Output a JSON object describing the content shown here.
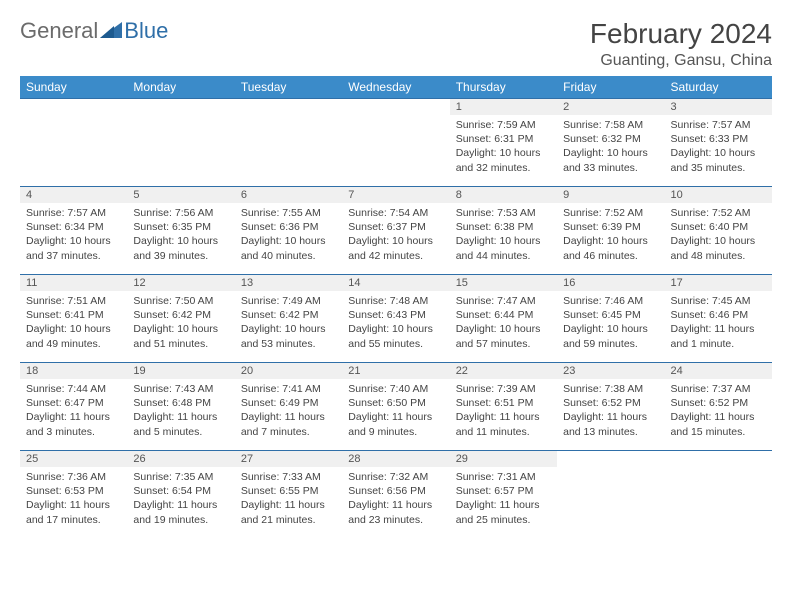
{
  "logo": {
    "general": "General",
    "blue": "Blue"
  },
  "title": "February 2024",
  "location": "Guanting, Gansu, China",
  "columns": [
    "Sunday",
    "Monday",
    "Tuesday",
    "Wednesday",
    "Thursday",
    "Friday",
    "Saturday"
  ],
  "colors": {
    "header_bg": "#3b8bc9",
    "header_text": "#ffffff",
    "border": "#2f6fa8",
    "daynum_bg": "#f0f0f0",
    "text": "#444444",
    "logo_gray": "#6b6b6b",
    "logo_blue": "#2f6fa8"
  },
  "weeks": [
    [
      null,
      null,
      null,
      null,
      {
        "n": "1",
        "sr": "Sunrise: 7:59 AM",
        "ss": "Sunset: 6:31 PM",
        "dl": "Daylight: 10 hours and 32 minutes."
      },
      {
        "n": "2",
        "sr": "Sunrise: 7:58 AM",
        "ss": "Sunset: 6:32 PM",
        "dl": "Daylight: 10 hours and 33 minutes."
      },
      {
        "n": "3",
        "sr": "Sunrise: 7:57 AM",
        "ss": "Sunset: 6:33 PM",
        "dl": "Daylight: 10 hours and 35 minutes."
      }
    ],
    [
      {
        "n": "4",
        "sr": "Sunrise: 7:57 AM",
        "ss": "Sunset: 6:34 PM",
        "dl": "Daylight: 10 hours and 37 minutes."
      },
      {
        "n": "5",
        "sr": "Sunrise: 7:56 AM",
        "ss": "Sunset: 6:35 PM",
        "dl": "Daylight: 10 hours and 39 minutes."
      },
      {
        "n": "6",
        "sr": "Sunrise: 7:55 AM",
        "ss": "Sunset: 6:36 PM",
        "dl": "Daylight: 10 hours and 40 minutes."
      },
      {
        "n": "7",
        "sr": "Sunrise: 7:54 AM",
        "ss": "Sunset: 6:37 PM",
        "dl": "Daylight: 10 hours and 42 minutes."
      },
      {
        "n": "8",
        "sr": "Sunrise: 7:53 AM",
        "ss": "Sunset: 6:38 PM",
        "dl": "Daylight: 10 hours and 44 minutes."
      },
      {
        "n": "9",
        "sr": "Sunrise: 7:52 AM",
        "ss": "Sunset: 6:39 PM",
        "dl": "Daylight: 10 hours and 46 minutes."
      },
      {
        "n": "10",
        "sr": "Sunrise: 7:52 AM",
        "ss": "Sunset: 6:40 PM",
        "dl": "Daylight: 10 hours and 48 minutes."
      }
    ],
    [
      {
        "n": "11",
        "sr": "Sunrise: 7:51 AM",
        "ss": "Sunset: 6:41 PM",
        "dl": "Daylight: 10 hours and 49 minutes."
      },
      {
        "n": "12",
        "sr": "Sunrise: 7:50 AM",
        "ss": "Sunset: 6:42 PM",
        "dl": "Daylight: 10 hours and 51 minutes."
      },
      {
        "n": "13",
        "sr": "Sunrise: 7:49 AM",
        "ss": "Sunset: 6:42 PM",
        "dl": "Daylight: 10 hours and 53 minutes."
      },
      {
        "n": "14",
        "sr": "Sunrise: 7:48 AM",
        "ss": "Sunset: 6:43 PM",
        "dl": "Daylight: 10 hours and 55 minutes."
      },
      {
        "n": "15",
        "sr": "Sunrise: 7:47 AM",
        "ss": "Sunset: 6:44 PM",
        "dl": "Daylight: 10 hours and 57 minutes."
      },
      {
        "n": "16",
        "sr": "Sunrise: 7:46 AM",
        "ss": "Sunset: 6:45 PM",
        "dl": "Daylight: 10 hours and 59 minutes."
      },
      {
        "n": "17",
        "sr": "Sunrise: 7:45 AM",
        "ss": "Sunset: 6:46 PM",
        "dl": "Daylight: 11 hours and 1 minute."
      }
    ],
    [
      {
        "n": "18",
        "sr": "Sunrise: 7:44 AM",
        "ss": "Sunset: 6:47 PM",
        "dl": "Daylight: 11 hours and 3 minutes."
      },
      {
        "n": "19",
        "sr": "Sunrise: 7:43 AM",
        "ss": "Sunset: 6:48 PM",
        "dl": "Daylight: 11 hours and 5 minutes."
      },
      {
        "n": "20",
        "sr": "Sunrise: 7:41 AM",
        "ss": "Sunset: 6:49 PM",
        "dl": "Daylight: 11 hours and 7 minutes."
      },
      {
        "n": "21",
        "sr": "Sunrise: 7:40 AM",
        "ss": "Sunset: 6:50 PM",
        "dl": "Daylight: 11 hours and 9 minutes."
      },
      {
        "n": "22",
        "sr": "Sunrise: 7:39 AM",
        "ss": "Sunset: 6:51 PM",
        "dl": "Daylight: 11 hours and 11 minutes."
      },
      {
        "n": "23",
        "sr": "Sunrise: 7:38 AM",
        "ss": "Sunset: 6:52 PM",
        "dl": "Daylight: 11 hours and 13 minutes."
      },
      {
        "n": "24",
        "sr": "Sunrise: 7:37 AM",
        "ss": "Sunset: 6:52 PM",
        "dl": "Daylight: 11 hours and 15 minutes."
      }
    ],
    [
      {
        "n": "25",
        "sr": "Sunrise: 7:36 AM",
        "ss": "Sunset: 6:53 PM",
        "dl": "Daylight: 11 hours and 17 minutes."
      },
      {
        "n": "26",
        "sr": "Sunrise: 7:35 AM",
        "ss": "Sunset: 6:54 PM",
        "dl": "Daylight: 11 hours and 19 minutes."
      },
      {
        "n": "27",
        "sr": "Sunrise: 7:33 AM",
        "ss": "Sunset: 6:55 PM",
        "dl": "Daylight: 11 hours and 21 minutes."
      },
      {
        "n": "28",
        "sr": "Sunrise: 7:32 AM",
        "ss": "Sunset: 6:56 PM",
        "dl": "Daylight: 11 hours and 23 minutes."
      },
      {
        "n": "29",
        "sr": "Sunrise: 7:31 AM",
        "ss": "Sunset: 6:57 PM",
        "dl": "Daylight: 11 hours and 25 minutes."
      },
      null,
      null
    ]
  ]
}
